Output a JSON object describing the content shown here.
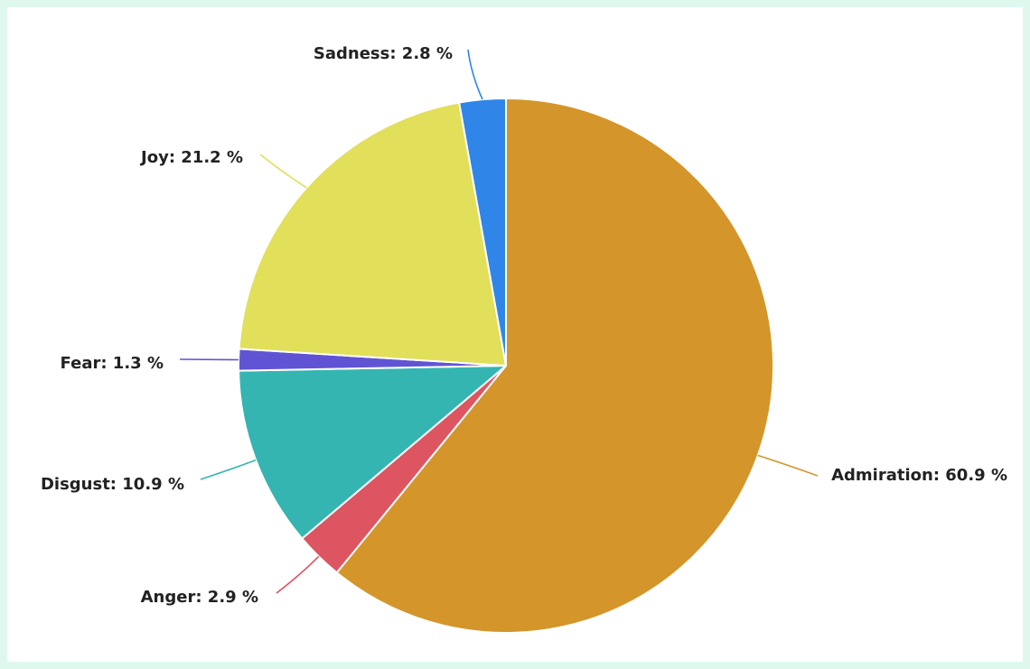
{
  "chart_data": {
    "type": "pie",
    "title": "",
    "slices": [
      {
        "label": "Admiration",
        "value": 60.9,
        "display": "Admiration: 60.9 %",
        "color": "#d4952a"
      },
      {
        "label": "Anger",
        "value": 2.9,
        "display": "Anger: 2.9 %",
        "color": "#dc5560"
      },
      {
        "label": "Disgust",
        "value": 10.9,
        "display": "Disgust: 10.9 %",
        "color": "#34b5b2"
      },
      {
        "label": "Fear",
        "value": 1.3,
        "display": "Fear: 1.3 %",
        "color": "#6054d4"
      },
      {
        "label": "Joy",
        "value": 21.2,
        "display": "Joy: 21.2 %",
        "color": "#e2df5a"
      },
      {
        "label": "Sadness",
        "value": 2.8,
        "display": "Sadness: 2.8 %",
        "color": "#2f86e8"
      }
    ],
    "unit": "%",
    "legend": "none"
  }
}
